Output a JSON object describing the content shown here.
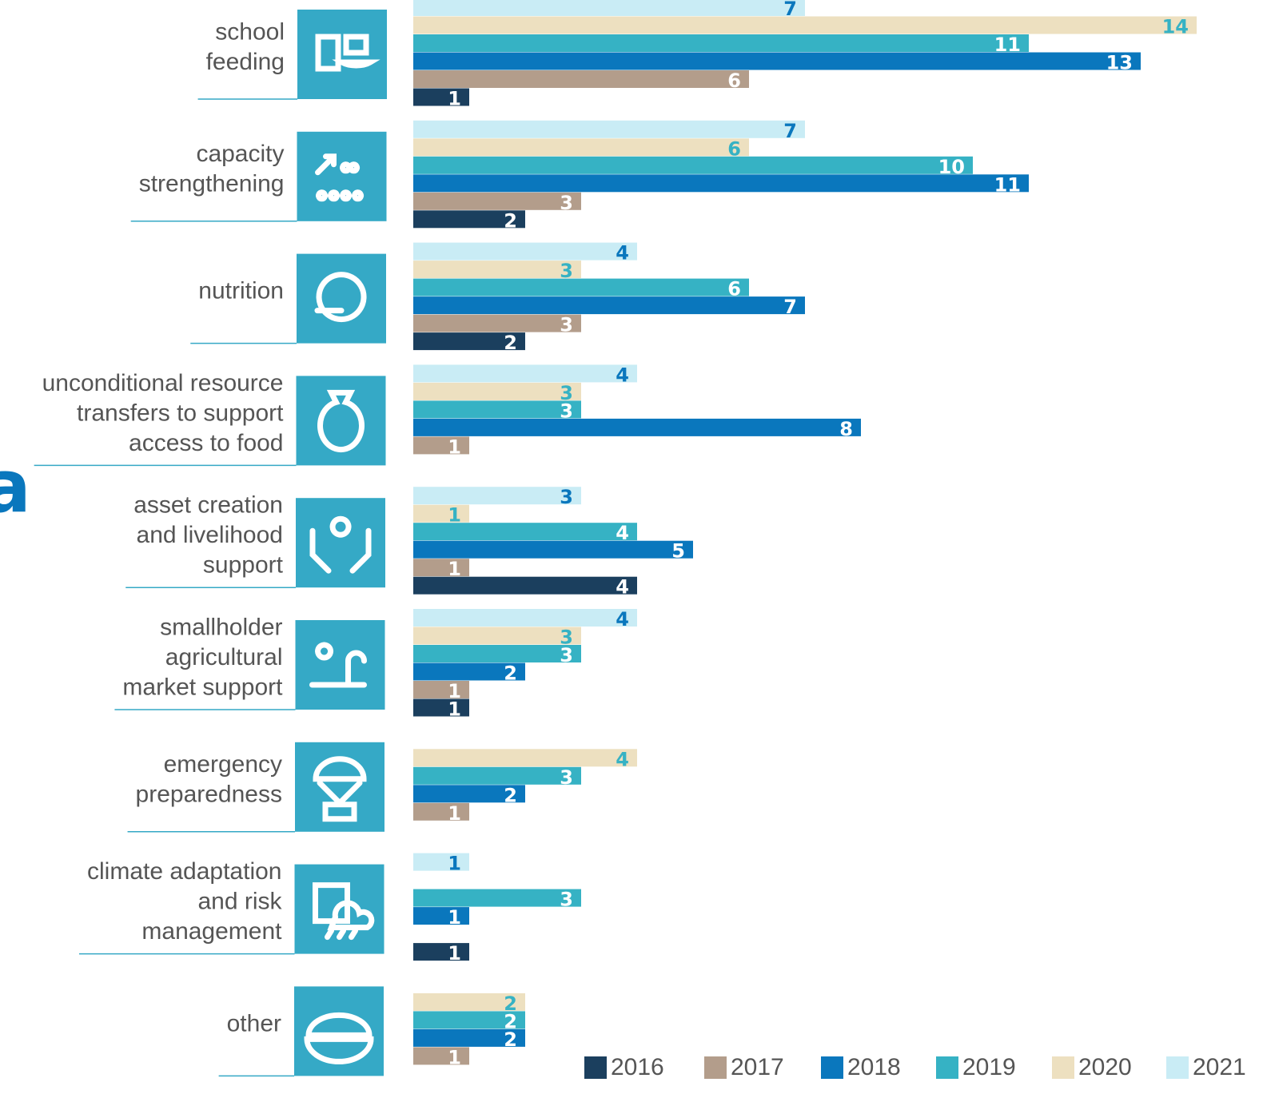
{
  "chart_data": {
    "type": "bar",
    "orientation": "horizontal",
    "annotation": "a",
    "categories": [
      [
        "school",
        "feeding"
      ],
      [
        "capacity",
        "strengthening"
      ],
      [
        "nutrition"
      ],
      [
        "unconditional resource",
        "transfers to support",
        "access to food"
      ],
      [
        "asset creation",
        "and livelihood",
        "support"
      ],
      [
        "smallholder",
        "agricultural",
        "market support"
      ],
      [
        "emergency",
        "preparedness"
      ],
      [
        "climate adaptation",
        "and risk",
        "management"
      ],
      [
        "other"
      ]
    ],
    "series": [
      {
        "name": "2016",
        "color": "#1b3f5e",
        "values": [
          1,
          2,
          2,
          null,
          4,
          1,
          null,
          1,
          null
        ]
      },
      {
        "name": "2017",
        "color": "#b39d8b",
        "values": [
          6,
          3,
          3,
          1,
          1,
          1,
          1,
          null,
          1
        ]
      },
      {
        "name": "2018",
        "color": "#0a77bd",
        "values": [
          13,
          11,
          7,
          8,
          5,
          2,
          2,
          1,
          2
        ]
      },
      {
        "name": "2019",
        "color": "#36b2c4",
        "values": [
          11,
          10,
          6,
          3,
          4,
          3,
          3,
          3,
          2
        ]
      },
      {
        "name": "2020",
        "color": "#ede0c0",
        "values": [
          14,
          6,
          3,
          3,
          1,
          3,
          4,
          null,
          2
        ]
      },
      {
        "name": "2021",
        "color": "#c9ecf5",
        "values": [
          7,
          7,
          4,
          4,
          3,
          4,
          null,
          1,
          null
        ]
      }
    ],
    "xlim": [
      0,
      14
    ]
  }
}
